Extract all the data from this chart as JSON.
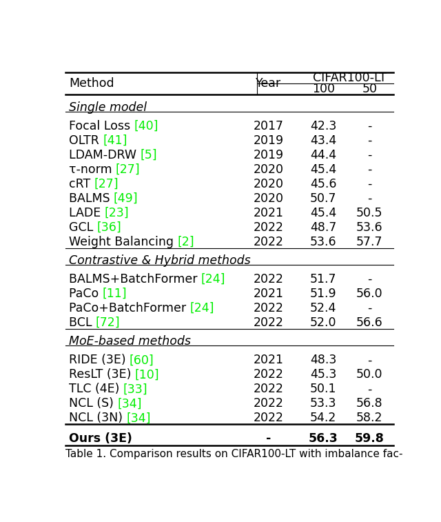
{
  "title_caption": "Table 1. Comparison results on CIFAR100-LT with imbalance fac-",
  "cifar_header": "CIFAR100-LT",
  "sections": [
    {
      "section_label": "Single model",
      "rows": [
        {
          "method": "Focal Loss",
          "ref": "[40]",
          "year": "2017",
          "c100": "42.3",
          "c50": "-"
        },
        {
          "method": "OLTR",
          "ref": "[41]",
          "year": "2019",
          "c100": "43.4",
          "c50": "-"
        },
        {
          "method": "LDAM-DRW",
          "ref": "[5]",
          "year": "2019",
          "c100": "44.4",
          "c50": "-"
        },
        {
          "method": "τ-norm",
          "ref": "[27]",
          "year": "2020",
          "c100": "45.4",
          "c50": "-"
        },
        {
          "method": "cRT",
          "ref": "[27]",
          "year": "2020",
          "c100": "45.6",
          "c50": "-"
        },
        {
          "method": "BALMS",
          "ref": "[49]",
          "year": "2020",
          "c100": "50.7",
          "c50": "-"
        },
        {
          "method": "LADE",
          "ref": "[23]",
          "year": "2021",
          "c100": "45.4",
          "c50": "50.5"
        },
        {
          "method": "GCL",
          "ref": "[36]",
          "year": "2022",
          "c100": "48.7",
          "c50": "53.6"
        },
        {
          "method": "Weight Balancing",
          "ref": "[2]",
          "year": "2022",
          "c100": "53.6",
          "c50": "57.7"
        }
      ]
    },
    {
      "section_label": "Contrastive & Hybrid methods",
      "rows": [
        {
          "method": "BALMS+BatchFormer",
          "ref": "[24]",
          "year": "2022",
          "c100": "51.7",
          "c50": "-"
        },
        {
          "method": "PaCo",
          "ref": "[11]",
          "year": "2021",
          "c100": "51.9",
          "c50": "56.0"
        },
        {
          "method": "PaCo+BatchFormer",
          "ref": "[24]",
          "year": "2022",
          "c100": "52.4",
          "c50": "-"
        },
        {
          "method": "BCL",
          "ref": "[72]",
          "year": "2022",
          "c100": "52.0",
          "c50": "56.6"
        }
      ]
    },
    {
      "section_label": "MoE-based methods",
      "rows": [
        {
          "method": "RIDE (3E)",
          "ref": "[60]",
          "year": "2021",
          "c100": "48.3",
          "c50": "-"
        },
        {
          "method": "ResLT (3E)",
          "ref": "[10]",
          "year": "2022",
          "c100": "45.3",
          "c50": "50.0"
        },
        {
          "method": "TLC (4E)",
          "ref": "[33]",
          "year": "2022",
          "c100": "50.1",
          "c50": "-"
        },
        {
          "method": "NCL (S)",
          "ref": "[34]",
          "year": "2022",
          "c100": "53.3",
          "c50": "56.8"
        },
        {
          "method": "NCL (3N)",
          "ref": "[34]",
          "year": "2022",
          "c100": "54.2",
          "c50": "58.2"
        }
      ]
    }
  ],
  "last_row": {
    "method": "Ours (3E)",
    "ref": "",
    "year": "-",
    "c100": "56.3",
    "c50": "59.8"
  },
  "bg_color": "#ffffff",
  "text_color": "#000000",
  "green_color": "#00ee00",
  "body_fontsize": 12.5,
  "caption_fontsize": 11.0,
  "header_fontsize": 12.5
}
